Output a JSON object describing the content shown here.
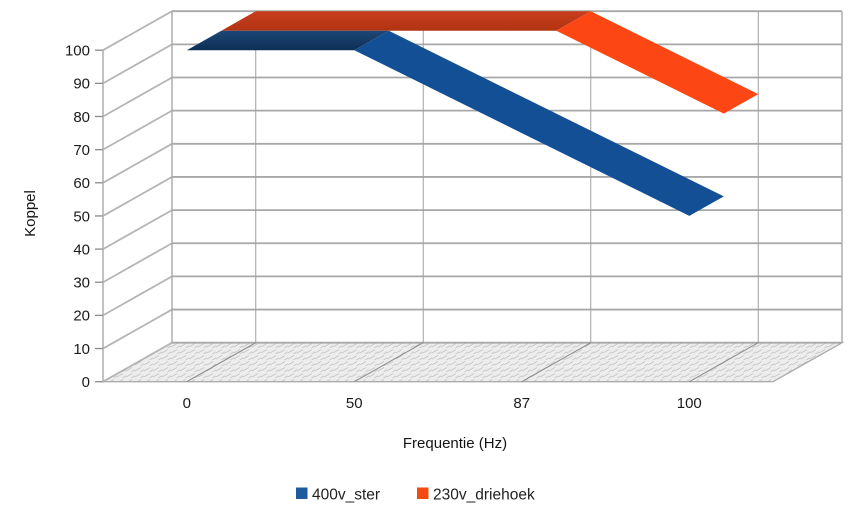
{
  "chart_data": {
    "type": "line",
    "style_3d": "deep-ribbon",
    "title": "",
    "xlabel": "Frequentie (Hz)",
    "ylabel": "Koppel",
    "categories": [
      "0",
      "50",
      "87",
      "100"
    ],
    "y_ticks": [
      0,
      10,
      20,
      30,
      40,
      50,
      60,
      70,
      80,
      90,
      100
    ],
    "ylim": [
      0,
      100
    ],
    "grid": true,
    "legend_position": "bottom",
    "series": [
      {
        "name": "400v_ster",
        "values": [
          100,
          100,
          75,
          50
        ],
        "legend_color": "#1d5b9c",
        "flat_color_top": "#1e4677",
        "flat_color_bottom": "#0d2f55",
        "slope_color": "#134f94"
      },
      {
        "name": "230v_driehoek",
        "values": [
          100,
          100,
          100,
          75
        ],
        "legend_color": "#f24a10",
        "flat_color_top": "#c83e1e",
        "flat_color_bottom": "#b23412",
        "slope_color": "#fc4714"
      }
    ]
  },
  "frame": {
    "background": "#ffffff",
    "grid_color": "#a8a8a8",
    "vertical_grid_color": "#a0a0a0",
    "wall_slant_color": "#b5b5b5",
    "wall_edge_color": "#a8a8a8",
    "tick_color": "#8a8a8a",
    "floor_fill": "#ededed",
    "floor_hatch_color": "#c6c6c6",
    "floor_edge_color": "#aeaeae",
    "text_color": "#1b1b1b"
  }
}
